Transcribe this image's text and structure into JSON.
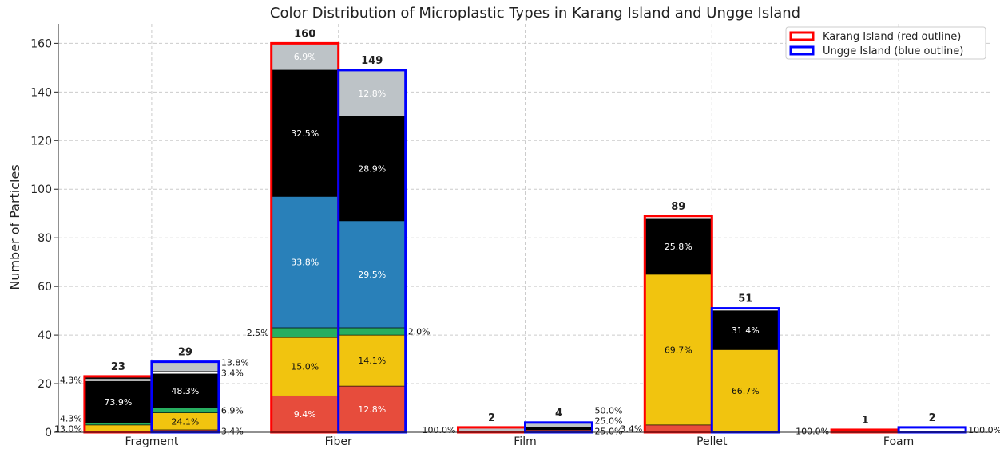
{
  "chart_data": {
    "type": "bar",
    "title": "Color Distribution of Microplastic Types in Karang Island and Ungge Island",
    "xlabel": "",
    "ylabel": "Number of Particles",
    "ylim": [
      0,
      168
    ],
    "yticks": [
      0,
      20,
      40,
      60,
      80,
      100,
      120,
      140,
      160
    ],
    "grid": true,
    "legend_position": "top-right",
    "categories": [
      "Fragment",
      "Fiber",
      "Film",
      "Pellet",
      "Foam"
    ],
    "colors": {
      "Red": "#e74c3c",
      "Yellow": "#f1c40f",
      "Green": "#27ae60",
      "Blue": "#2980b9",
      "Black": "#000000",
      "White": "#ffffff",
      "Grey": "#bdc3c7",
      "Dark": "#111111"
    },
    "series": [
      {
        "name": "Karang Island (red outline)",
        "outline": "#ff0000",
        "totals": [
          23,
          160,
          2,
          89,
          1
        ],
        "stacks": [
          [
            [
              "Yellow",
              3,
              "13.0%"
            ],
            [
              "Green",
              1,
              "4.3%"
            ],
            [
              "Black",
              17,
              "73.9%"
            ],
            [
              "White",
              1,
              "4.3%"
            ],
            [
              "Dark",
              1,
              ""
            ]
          ],
          [
            [
              "Red",
              15,
              "9.4%"
            ],
            [
              "Yellow",
              24,
              "15.0%"
            ],
            [
              "Green",
              4,
              "2.5%"
            ],
            [
              "Blue",
              54,
              "33.8%"
            ],
            [
              "Black",
              52,
              "32.5%"
            ],
            [
              "Grey",
              11,
              "6.9%"
            ]
          ],
          [
            [
              "Grey",
              2,
              "100.0%"
            ]
          ],
          [
            [
              "Red",
              3,
              "3.4%"
            ],
            [
              "Yellow",
              62,
              "69.7%"
            ],
            [
              "Black",
              23,
              "25.8%"
            ],
            [
              "White",
              1,
              ""
            ]
          ],
          [
            [
              "Red",
              1,
              "100.0%"
            ]
          ]
        ]
      },
      {
        "name": "Ungge Island (blue outline)",
        "outline": "#0000ff",
        "totals": [
          29,
          149,
          4,
          51,
          2
        ],
        "stacks": [
          [
            [
              "Red",
              1,
              "3.4%"
            ],
            [
              "Yellow",
              7,
              "24.1%"
            ],
            [
              "Green",
              2,
              "6.9%"
            ],
            [
              "Black",
              14,
              "48.3%"
            ],
            [
              "White",
              1,
              "3.4%"
            ],
            [
              "Grey",
              4,
              "13.8%"
            ]
          ],
          [
            [
              "Red",
              19,
              "12.8%"
            ],
            [
              "Yellow",
              21,
              "14.1%"
            ],
            [
              "Green",
              3,
              "2.0%"
            ],
            [
              "Blue",
              44,
              "29.5%"
            ],
            [
              "Black",
              43,
              "28.9%"
            ],
            [
              "Grey",
              19,
              "12.8%"
            ]
          ],
          [
            [
              "Red",
              1,
              "25.0%"
            ],
            [
              "Black",
              1,
              "25.0%"
            ],
            [
              "Grey",
              2,
              "50.0%"
            ]
          ],
          [
            [
              "Yellow",
              34,
              "66.7%"
            ],
            [
              "Black",
              16,
              "31.4%"
            ],
            [
              "White",
              1,
              ""
            ]
          ],
          [
            [
              "White",
              2,
              "100.0%"
            ]
          ]
        ]
      }
    ]
  }
}
